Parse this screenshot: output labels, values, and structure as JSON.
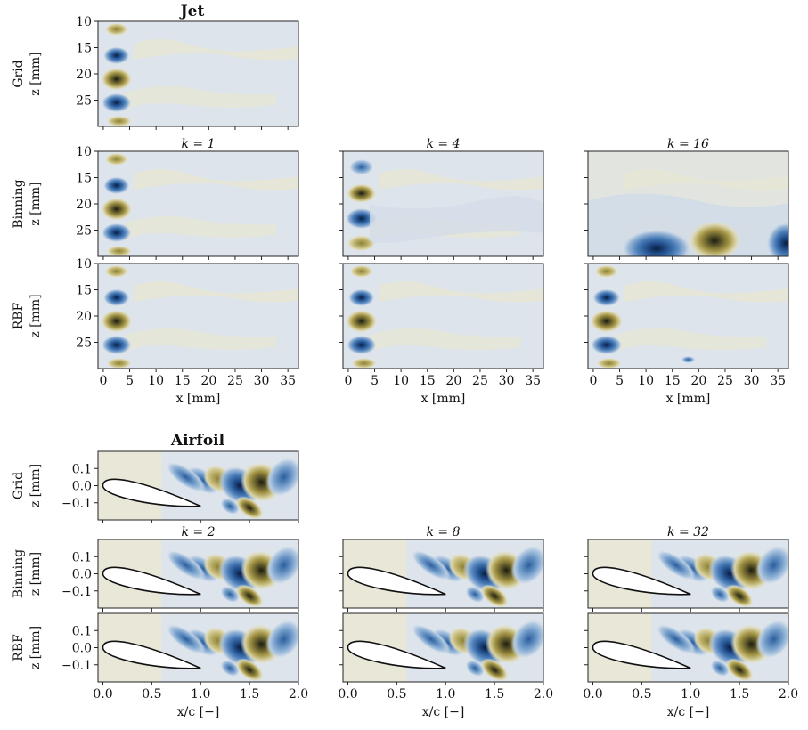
{
  "figure": {
    "jet": {
      "title": "Jet",
      "row_labels": [
        "Grid",
        "Binning",
        "RBF"
      ],
      "y_axis_label": "z [mm]",
      "x_axis_label": "x [mm]",
      "x_ticks": [
        "0",
        "5",
        "10",
        "15",
        "20",
        "25",
        "30",
        "35"
      ],
      "y_ticks": [
        "10",
        "15",
        "20",
        "25"
      ],
      "k_titles": [
        "k = 1",
        "k = 4",
        "k = 16"
      ]
    },
    "airfoil": {
      "title": "Airfoil",
      "row_labels": [
        "Grid",
        "Binning",
        "RBF"
      ],
      "y_axis_label": "z [mm]",
      "x_axis_label": "x/c [−]",
      "x_ticks": [
        "0.0",
        "0.5",
        "1.0",
        "1.5",
        "2.0"
      ],
      "y_ticks": [
        "0.1",
        "0.0",
        "−0.1"
      ],
      "k_titles": [
        "k = 2",
        "k = 8",
        "k = 32"
      ]
    },
    "colors": {
      "background": "#dde4ec",
      "positive": "#b8a64e",
      "negative": "#2f63a0",
      "extreme": "#1b1b10"
    }
  },
  "chart_data": [
    {
      "type": "heatmap",
      "title": "Jet",
      "description_rows": [
        "Grid",
        "Binning",
        "RBF"
      ],
      "columns_k": [
        1,
        4,
        16
      ],
      "xlabel": "x [mm]",
      "ylabel": "z [mm]",
      "xlim": [
        -1,
        37
      ],
      "ylim": [
        10,
        30
      ],
      "xticks": [
        0,
        5,
        10,
        15,
        20,
        25,
        30,
        35
      ],
      "yticks": [
        10,
        15,
        20,
        25
      ],
      "features": [
        {
          "panel": "all except Binning k=4/16",
          "x": 2.5,
          "z": [
            12.5,
            16.5,
            21,
            25.5,
            28.5
          ],
          "sign": [
            1,
            -1,
            1,
            -1,
            1
          ]
        },
        {
          "panel": "Binning k=4",
          "x": 2.5,
          "z": [
            13,
            18,
            22.5,
            27
          ],
          "sign": [
            -1,
            1,
            -1,
            1
          ]
        },
        {
          "panel": "Binning k=16",
          "x": [
            12,
            23,
            36
          ],
          "z": 28,
          "sign": [
            -1,
            1,
            -1
          ]
        }
      ]
    },
    {
      "type": "heatmap",
      "title": "Airfoil",
      "description_rows": [
        "Grid",
        "Binning",
        "RBF"
      ],
      "columns_k": [
        2,
        8,
        32
      ],
      "xlabel": "x/c [−]",
      "ylabel": "z [mm]",
      "xlim": [
        -0.05,
        2.0
      ],
      "ylim": [
        -0.2,
        0.2
      ],
      "xticks": [
        0.0,
        0.5,
        1.0,
        1.5,
        2.0
      ],
      "yticks": [
        0.1,
        0.0,
        -0.1
      ]
    }
  ]
}
